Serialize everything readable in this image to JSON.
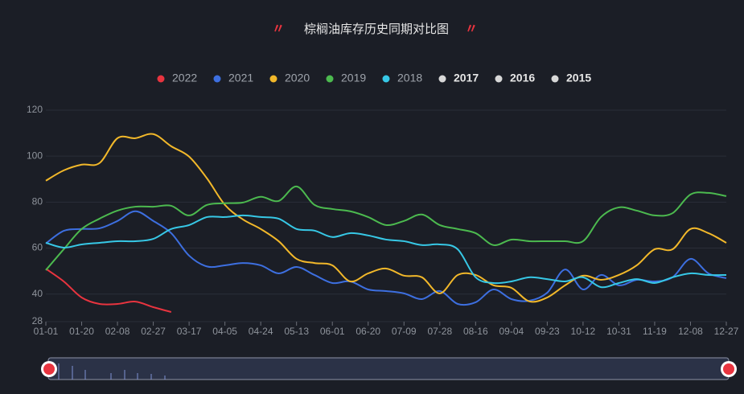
{
  "chart_data": {
    "type": "line",
    "title": "棕榈油库存历史同期对比图",
    "categories": [
      "01-01",
      null,
      "01-20",
      null,
      "02-08",
      null,
      "02-27",
      null,
      "03-17",
      null,
      "04-05",
      null,
      "04-24",
      null,
      "05-13",
      null,
      "06-01",
      null,
      "06-20",
      null,
      "07-09",
      null,
      "07-28",
      null,
      "08-16",
      null,
      "09-04",
      null,
      "09-23",
      null,
      "10-12",
      null,
      "10-31",
      null,
      "11-19",
      null,
      "12-08",
      null,
      "12-27"
    ],
    "series": [
      {
        "name": "2022",
        "color": "#e8343f",
        "values": [
          51,
          45.5,
          38.5,
          35.7,
          35.7,
          36.7,
          34.3,
          32.2,
          null,
          null,
          null,
          null,
          null,
          null,
          null,
          null,
          null,
          null,
          null,
          null,
          null,
          null,
          null,
          null,
          null,
          null,
          null,
          null,
          null,
          null,
          null,
          null,
          null,
          null,
          null,
          null,
          null,
          null,
          null
        ]
      },
      {
        "name": "2021",
        "color": "#3d6fe0",
        "values": [
          62,
          67.5,
          68.3,
          68.6,
          71.8,
          76,
          71.8,
          66.5,
          56.7,
          52,
          52.5,
          53.5,
          52.5,
          49,
          51.8,
          48.3,
          44.8,
          45.5,
          42,
          41.3,
          40.3,
          37.8,
          41.3,
          35.7,
          36.4,
          42,
          37.8,
          37.1,
          40.6,
          50.7,
          42,
          48.3,
          43.8,
          46.2,
          45.5,
          47.3,
          55.3,
          49,
          46.9
        ]
      },
      {
        "name": "2020",
        "color": "#f2b82a",
        "values": [
          89.3,
          93.8,
          96.3,
          97,
          107.8,
          107.8,
          109.6,
          104.3,
          99.8,
          90.3,
          78.8,
          72.5,
          68.3,
          63,
          55.3,
          53.5,
          52.5,
          45.5,
          49,
          51.1,
          48,
          47.3,
          40.3,
          48.3,
          48.3,
          43.8,
          42.7,
          36.8,
          38.5,
          43.8,
          48,
          46.2,
          48.3,
          52.5,
          59.5,
          59.5,
          68.3,
          66.5,
          62.3
        ]
      },
      {
        "name": "2019",
        "color": "#4cba4f",
        "values": [
          50.4,
          59.5,
          68.3,
          72.8,
          76.3,
          78,
          78,
          78.4,
          74.2,
          78.8,
          79.5,
          79.8,
          82.3,
          80.5,
          86.8,
          78.8,
          77,
          76,
          73.5,
          70,
          71.8,
          74.6,
          70,
          68.3,
          66.5,
          61.3,
          63.7,
          63,
          63,
          63,
          63,
          73.5,
          77.7,
          76.3,
          74.2,
          75.2,
          83.3,
          84,
          82.6
        ]
      },
      {
        "name": "2018",
        "color": "#37c8e6",
        "values": [
          62.3,
          60.2,
          61.6,
          62.3,
          63,
          63,
          64,
          68.3,
          70,
          73.5,
          73.5,
          74.2,
          73.5,
          72.8,
          68.3,
          67.6,
          64.8,
          66.5,
          65.5,
          63.7,
          63,
          61.3,
          61.6,
          59.5,
          47.3,
          44.8,
          45.5,
          47.3,
          46.5,
          45.5,
          47.3,
          43,
          44.8,
          46.5,
          44.8,
          47.3,
          49,
          48.3,
          48.3
        ]
      }
    ],
    "legend_extra": [
      {
        "name": "2017",
        "color": "#d8d8d8"
      },
      {
        "name": "2016",
        "color": "#d8d8d8"
      },
      {
        "name": "2015",
        "color": "#d8d8d8"
      }
    ],
    "ylim": [
      28,
      120
    ],
    "yticks": [
      28,
      40,
      60,
      80,
      100,
      120
    ],
    "grid": true
  }
}
